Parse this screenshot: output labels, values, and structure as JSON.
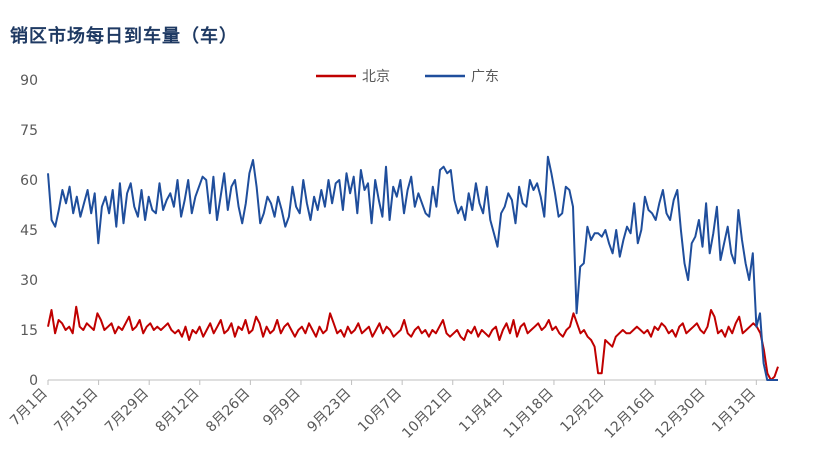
{
  "chart_data": {
    "type": "line",
    "title": "销区市场每日到车量（车）",
    "xlabel": "",
    "ylabel": "",
    "ylim": [
      0,
      90
    ],
    "yticks": [
      0,
      15,
      30,
      45,
      60,
      75,
      90
    ],
    "xtick_labels": [
      "7月1日",
      "7月15日",
      "7月29日",
      "8月12日",
      "8月26日",
      "9月9日",
      "9月23日",
      "10月7日",
      "10月21日",
      "11月4日",
      "11月18日",
      "12月2日",
      "12月16日",
      "12月30日",
      "1月13日"
    ],
    "xtick_days": [
      0,
      14,
      28,
      42,
      56,
      70,
      84,
      98,
      112,
      126,
      140,
      154,
      168,
      182,
      196
    ],
    "x_max_day": 202,
    "legend_position": "top",
    "series": [
      {
        "name": "北京",
        "color": "#c00000",
        "values": [
          16,
          21,
          14,
          18,
          17,
          15,
          16,
          14,
          22,
          16,
          15,
          17,
          16,
          15,
          20,
          18,
          15,
          16,
          17,
          14,
          16,
          15,
          17,
          19,
          15,
          16,
          18,
          14,
          16,
          17,
          15,
          16,
          15,
          16,
          17,
          15,
          14,
          15,
          13,
          16,
          12,
          15,
          14,
          16,
          13,
          15,
          17,
          14,
          16,
          18,
          14,
          15,
          17,
          13,
          16,
          15,
          18,
          14,
          15,
          19,
          17,
          13,
          16,
          14,
          15,
          18,
          14,
          16,
          17,
          15,
          13,
          15,
          16,
          14,
          17,
          15,
          13,
          16,
          14,
          15,
          20,
          17,
          14,
          15,
          13,
          16,
          14,
          15,
          17,
          14,
          15,
          16,
          13,
          15,
          17,
          14,
          16,
          15,
          13,
          14,
          15,
          18,
          14,
          13,
          15,
          16,
          14,
          15,
          13,
          15,
          14,
          16,
          18,
          14,
          13,
          14,
          15,
          13,
          12,
          15,
          14,
          16,
          13,
          15,
          14,
          13,
          15,
          16,
          12,
          15,
          17,
          14,
          18,
          13,
          16,
          17,
          14,
          15,
          16,
          17,
          15,
          16,
          18,
          15,
          16,
          14,
          13,
          15,
          16,
          20,
          17,
          14,
          15,
          13,
          12,
          10,
          2,
          2,
          12,
          11,
          10,
          13,
          14,
          15,
          14,
          14,
          15,
          16,
          15,
          14,
          15,
          13,
          16,
          15,
          17,
          16,
          14,
          15,
          13,
          16,
          17,
          14,
          15,
          16,
          17,
          15,
          14,
          16,
          21,
          19,
          14,
          15,
          13,
          16,
          14,
          17,
          19,
          14,
          15,
          16,
          17,
          16,
          14,
          9,
          2,
          0,
          1,
          4
        ]
      },
      {
        "name": "广东",
        "color": "#1f4e9c",
        "values": [
          62,
          48,
          46,
          51,
          57,
          53,
          58,
          50,
          55,
          49,
          53,
          57,
          50,
          56,
          41,
          52,
          55,
          50,
          57,
          46,
          59,
          47,
          56,
          59,
          52,
          49,
          57,
          48,
          55,
          51,
          50,
          59,
          51,
          54,
          56,
          52,
          60,
          49,
          54,
          60,
          50,
          55,
          58,
          61,
          60,
          50,
          61,
          48,
          55,
          62,
          51,
          58,
          60,
          52,
          47,
          53,
          62,
          66,
          58,
          47,
          50,
          55,
          53,
          49,
          55,
          51,
          46,
          49,
          58,
          52,
          50,
          60,
          53,
          48,
          55,
          51,
          57,
          52,
          60,
          53,
          59,
          60,
          51,
          62,
          56,
          61,
          50,
          63,
          57,
          59,
          47,
          60,
          54,
          49,
          64,
          48,
          58,
          55,
          60,
          50,
          57,
          61,
          52,
          56,
          53,
          50,
          49,
          58,
          52,
          63,
          64,
          62,
          63,
          54,
          50,
          52,
          48,
          56,
          51,
          59,
          53,
          50,
          58,
          48,
          44,
          40,
          50,
          52,
          56,
          54,
          47,
          58,
          53,
          52,
          60,
          57,
          59,
          55,
          49,
          67,
          62,
          56,
          49,
          50,
          58,
          57,
          52,
          20,
          34,
          35,
          46,
          42,
          44,
          44,
          43,
          45,
          41,
          38,
          45,
          37,
          42,
          46,
          44,
          53,
          41,
          45,
          55,
          51,
          50,
          48,
          53,
          57,
          50,
          48,
          54,
          57,
          45,
          35,
          30,
          41,
          43,
          48,
          40,
          53,
          38,
          44,
          52,
          36,
          41,
          46,
          38,
          35,
          51,
          42,
          35,
          30,
          38,
          16,
          20,
          5,
          0,
          0,
          0,
          0
        ]
      }
    ]
  }
}
